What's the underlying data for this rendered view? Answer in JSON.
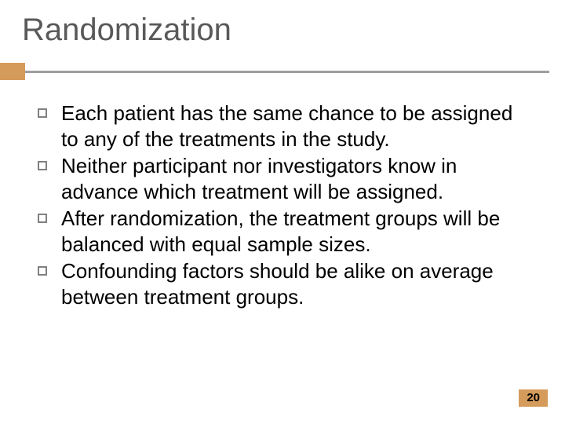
{
  "slide": {
    "title": "Randomization",
    "bullets": [
      "Each patient has the same chance to be assigned to any of the treatments in the study.",
      "Neither participant nor investigators know in advance which treatment will be assigned.",
      "After randomization, the treatment groups will be balanced with equal sample sizes.",
      "Confounding factors should be alike on average between treatment groups."
    ],
    "page_number": "20"
  },
  "style": {
    "background_color": "#ffffff",
    "title_color": "#595959",
    "title_fontsize": 40,
    "accent_color": "#d59b5b",
    "divider_color": "#9e9e9e",
    "bullet_border_color": "#808080",
    "body_text_color": "#000000",
    "body_fontsize": 26,
    "page_number_bg": "#d59b5b",
    "page_number_color": "#000000",
    "page_number_fontsize": 15
  }
}
